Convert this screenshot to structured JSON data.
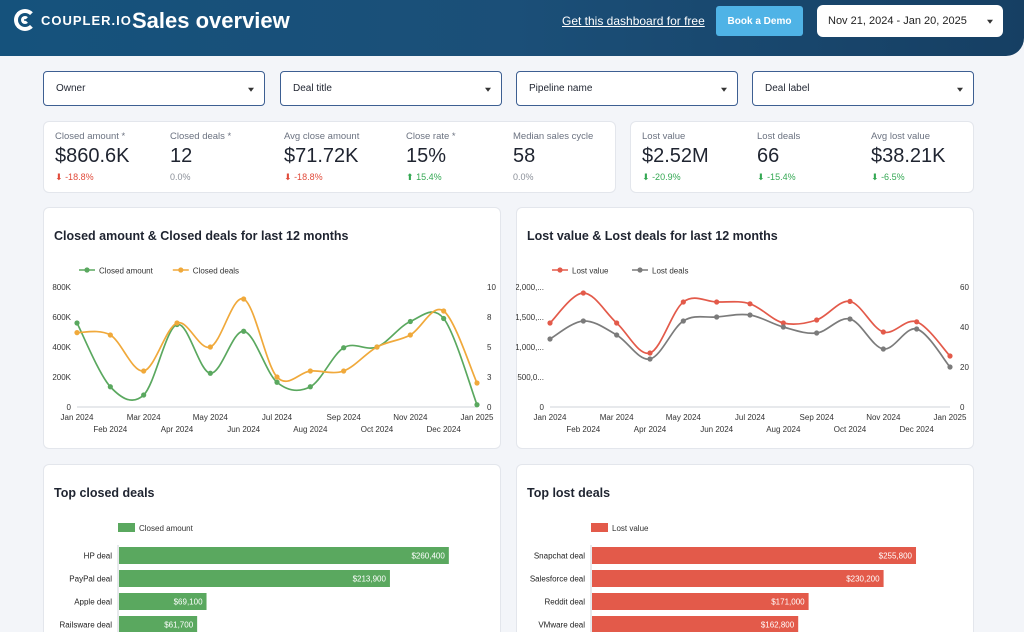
{
  "header": {
    "logo_text": "COUPLER.IO",
    "title": "Sales overview",
    "free_link": "Get this dashboard for free",
    "demo_button": "Book a Demo",
    "date_range": "Nov 21, 2024 - Jan 20, 2025"
  },
  "filters": [
    "Owner",
    "Deal title",
    "Pipeline name",
    "Deal label"
  ],
  "kpis_closed": [
    {
      "label": "Closed amount *",
      "value": "$860.6K",
      "delta": "-18.8%",
      "trend": "down"
    },
    {
      "label": "Closed deals *",
      "value": "12",
      "delta": "0.0%",
      "trend": "flat"
    },
    {
      "label": "Avg close amount",
      "value": "$71.72K",
      "delta": "-18.8%",
      "trend": "down"
    },
    {
      "label": "Close rate *",
      "value": "15%",
      "delta": "15.4%",
      "trend": "up"
    },
    {
      "label": "Median sales cycle",
      "value": "58",
      "delta": "0.0%",
      "trend": "flat"
    }
  ],
  "kpis_lost": [
    {
      "label": "Lost value",
      "value": "$2.52M",
      "delta": "-20.9%",
      "trend": "good-down"
    },
    {
      "label": "Lost deals",
      "value": "66",
      "delta": "-15.4%",
      "trend": "good-down"
    },
    {
      "label": "Avg lost value",
      "value": "$38.21K",
      "delta": "-6.5%",
      "trend": "good-down"
    }
  ],
  "colors": {
    "green": "#5aa85f",
    "orange": "#f0a93b",
    "red": "#e35a4a",
    "gray": "#7b7b7b",
    "header": "#1b4f78",
    "demo": "#4fb3e6"
  },
  "chart_data": [
    {
      "type": "line",
      "title": "Closed amount & Closed deals for last 12 months",
      "x": [
        "Jan 2024",
        "Feb 2024",
        "Mar 2024",
        "Apr 2024",
        "May 2024",
        "Jun 2024",
        "Jul 2024",
        "Aug 2024",
        "Sep 2024",
        "Oct 2024",
        "Nov 2024",
        "Dec 2024",
        "Jan 2025"
      ],
      "x_row_top": [
        "Jan 2024",
        "Mar 2024",
        "May 2024",
        "Jul 2024",
        "Sep 2024",
        "Nov 2024",
        "Jan 2025"
      ],
      "x_row_bottom": [
        "Feb 2024",
        "Apr 2024",
        "Jun 2024",
        "Aug 2024",
        "Oct 2024",
        "Dec 2024"
      ],
      "series": [
        {
          "name": "Closed amount",
          "axis": "left",
          "color": "#5aa85f",
          "values": [
            560000,
            135000,
            80000,
            550000,
            225000,
            505000,
            165000,
            135000,
            395000,
            400000,
            570000,
            590000,
            15000
          ]
        },
        {
          "name": "Closed deals",
          "axis": "right",
          "color": "#f0a93b",
          "values": [
            6.2,
            6.0,
            3.0,
            7.0,
            5.0,
            9.0,
            2.5,
            3.0,
            3.0,
            5.0,
            6.0,
            8.0,
            2.0
          ]
        }
      ],
      "y_left": {
        "min": 0,
        "max": 800000,
        "ticks": [
          "0",
          "200K",
          "400K",
          "600K",
          "800K"
        ]
      },
      "y_right": {
        "min": 0,
        "max": 10,
        "ticks": [
          "0",
          "3",
          "5",
          "8",
          "10"
        ]
      }
    },
    {
      "type": "line",
      "title": "Lost value & Lost deals for last 12 months",
      "x": [
        "Jan 2024",
        "Feb 2024",
        "Mar 2024",
        "Apr 2024",
        "May 2024",
        "Jun 2024",
        "Jul 2024",
        "Aug 2024",
        "Sep 2024",
        "Oct 2024",
        "Nov 2024",
        "Dec 2024",
        "Jan 2025"
      ],
      "x_row_top": [
        "Jan 2024",
        "Mar 2024",
        "May 2024",
        "Jul 2024",
        "Sep 2024",
        "Nov 2024",
        "Jan 2025"
      ],
      "x_row_bottom": [
        "Feb 2024",
        "Apr 2024",
        "Jun 2024",
        "Aug 2024",
        "Oct 2024",
        "Dec 2024"
      ],
      "series": [
        {
          "name": "Lost value",
          "axis": "left",
          "color": "#e35a4a",
          "values": [
            1400000,
            1900000,
            1400000,
            900000,
            1750000,
            1750000,
            1720000,
            1400000,
            1450000,
            1760000,
            1250000,
            1420000,
            850000
          ]
        },
        {
          "name": "Lost deals",
          "axis": "right",
          "color": "#7b7b7b",
          "values": [
            34,
            43,
            36,
            24,
            43,
            45,
            46,
            40,
            37,
            44,
            29,
            39,
            20
          ]
        }
      ],
      "y_left": {
        "min": 0,
        "max": 2000000,
        "ticks": [
          "0",
          "500,0...",
          "1,000,...",
          "1,500,...",
          "2,000,..."
        ]
      },
      "y_right": {
        "min": 0,
        "max": 60,
        "ticks": [
          "0",
          "20",
          "40",
          "60"
        ]
      }
    },
    {
      "type": "bar",
      "title": "Top closed deals",
      "legend": "Closed amount",
      "color": "#5aa85f",
      "max": 300000,
      "categories": [
        "HP deal",
        "PayPal deal",
        "Apple deal",
        "Railsware deal"
      ],
      "values": [
        260400,
        213900,
        69100,
        61700
      ],
      "labels": [
        "$260,400",
        "$213,900",
        "$69,100",
        "$61,700"
      ]
    },
    {
      "type": "bar",
      "title": "Top lost deals",
      "legend": "Lost value",
      "color": "#e35a4a",
      "max": 300000,
      "categories": [
        "Snapchat deal",
        "Salesforce deal",
        "Reddit deal",
        "VMware deal"
      ],
      "values": [
        255800,
        230200,
        171000,
        162800
      ],
      "labels": [
        "$255,800",
        "$230,200",
        "$171,000",
        "$162,800"
      ]
    }
  ]
}
